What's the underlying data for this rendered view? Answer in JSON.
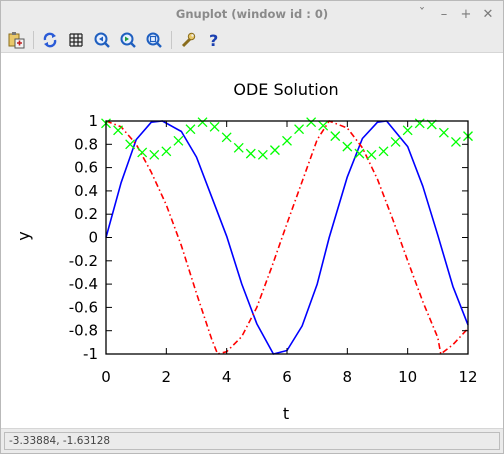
{
  "window": {
    "title": "Gnuplot (window id : 0)",
    "controls": [
      {
        "name": "restore-down-icon",
        "glyph": "ˇ"
      },
      {
        "name": "minimize-icon",
        "glyph": "–"
      },
      {
        "name": "maximize-icon",
        "glyph": "+"
      },
      {
        "name": "close-icon",
        "glyph": "✕"
      }
    ]
  },
  "toolbar": {
    "buttons": [
      {
        "name": "copy-to-clipboard-icon",
        "color": "#c8a23a"
      },
      {
        "name": "replot-icon",
        "color": "#2a5bd7"
      },
      {
        "name": "grid-icon",
        "color": "#222222"
      },
      {
        "name": "zoom-previous-icon",
        "color": "#1f5fbf"
      },
      {
        "name": "zoom-next-icon",
        "color": "#1f5fbf"
      },
      {
        "name": "autoscale-icon",
        "color": "#1f5fbf"
      },
      {
        "name": "options-wrench-icon",
        "color": "#c8a23a"
      },
      {
        "name": "help-icon",
        "color": "#1a3fb0"
      }
    ]
  },
  "chart_data": {
    "type": "line",
    "title": "ODE Solution",
    "xlabel": "t",
    "ylabel": "y",
    "xlim": [
      0,
      12
    ],
    "ylim": [
      -1,
      1
    ],
    "xticks": [
      0,
      2,
      4,
      6,
      8,
      10,
      12
    ],
    "yticks": [
      -1,
      -0.8,
      -0.6,
      -0.4,
      -0.2,
      0,
      0.2,
      0.4,
      0.6,
      0.8,
      1
    ],
    "grid": false,
    "legend": "none",
    "series": [
      {
        "style": "solid",
        "color": "#0000ff",
        "x": [
          0,
          0.5,
          1,
          1.5,
          1.87,
          2.5,
          3,
          3.5,
          4,
          4.5,
          5,
          5.55,
          6,
          6.5,
          7,
          7.4,
          8,
          8.5,
          9,
          9.3,
          10,
          10.5,
          11,
          11.5,
          12
        ],
        "y": [
          0,
          0.47,
          0.84,
          0.99,
          1.0,
          0.91,
          0.69,
          0.35,
          0.01,
          -0.4,
          -0.74,
          -1.0,
          -0.97,
          -0.76,
          -0.4,
          0.0,
          0.52,
          0.85,
          0.99,
          1.0,
          0.78,
          0.44,
          0.02,
          -0.42,
          -0.75
        ]
      },
      {
        "style": "dash-dot",
        "color": "#ff0000",
        "x": [
          0,
          0.5,
          1,
          1.5,
          2,
          2.5,
          3,
          3.5,
          3.7,
          4,
          4.5,
          5,
          5.5,
          6,
          6.5,
          7,
          7.4,
          8,
          8.5,
          9,
          9.5,
          10,
          10.5,
          11,
          11.1,
          11.5,
          12
        ],
        "y": [
          1.0,
          0.95,
          0.8,
          0.56,
          0.28,
          -0.07,
          -0.48,
          -0.87,
          -1.0,
          -0.98,
          -0.85,
          -0.6,
          -0.25,
          0.12,
          0.48,
          0.84,
          1.0,
          0.94,
          0.77,
          0.5,
          0.16,
          -0.2,
          -0.55,
          -0.86,
          -1.0,
          -0.92,
          -0.78
        ]
      },
      {
        "style": "markers",
        "color": "#00ff00",
        "marker": "x",
        "x": [
          0,
          0.4,
          0.8,
          1.2,
          1.6,
          2.0,
          2.4,
          2.8,
          3.2,
          3.6,
          4.0,
          4.4,
          4.8,
          5.2,
          5.6,
          6.0,
          6.4,
          6.8,
          7.2,
          7.6,
          8.0,
          8.4,
          8.8,
          9.2,
          9.6,
          10.0,
          10.4,
          10.8,
          11.2,
          11.6,
          12.0
        ],
        "y": [
          0.98,
          0.92,
          0.8,
          0.73,
          0.71,
          0.74,
          0.83,
          0.93,
          0.99,
          0.95,
          0.86,
          0.77,
          0.72,
          0.71,
          0.75,
          0.83,
          0.93,
          0.99,
          0.96,
          0.87,
          0.78,
          0.72,
          0.71,
          0.74,
          0.82,
          0.92,
          0.98,
          0.97,
          0.9,
          0.82,
          0.87
        ]
      }
    ]
  },
  "status": {
    "coordinates": "-3.33884, -1.63128"
  }
}
